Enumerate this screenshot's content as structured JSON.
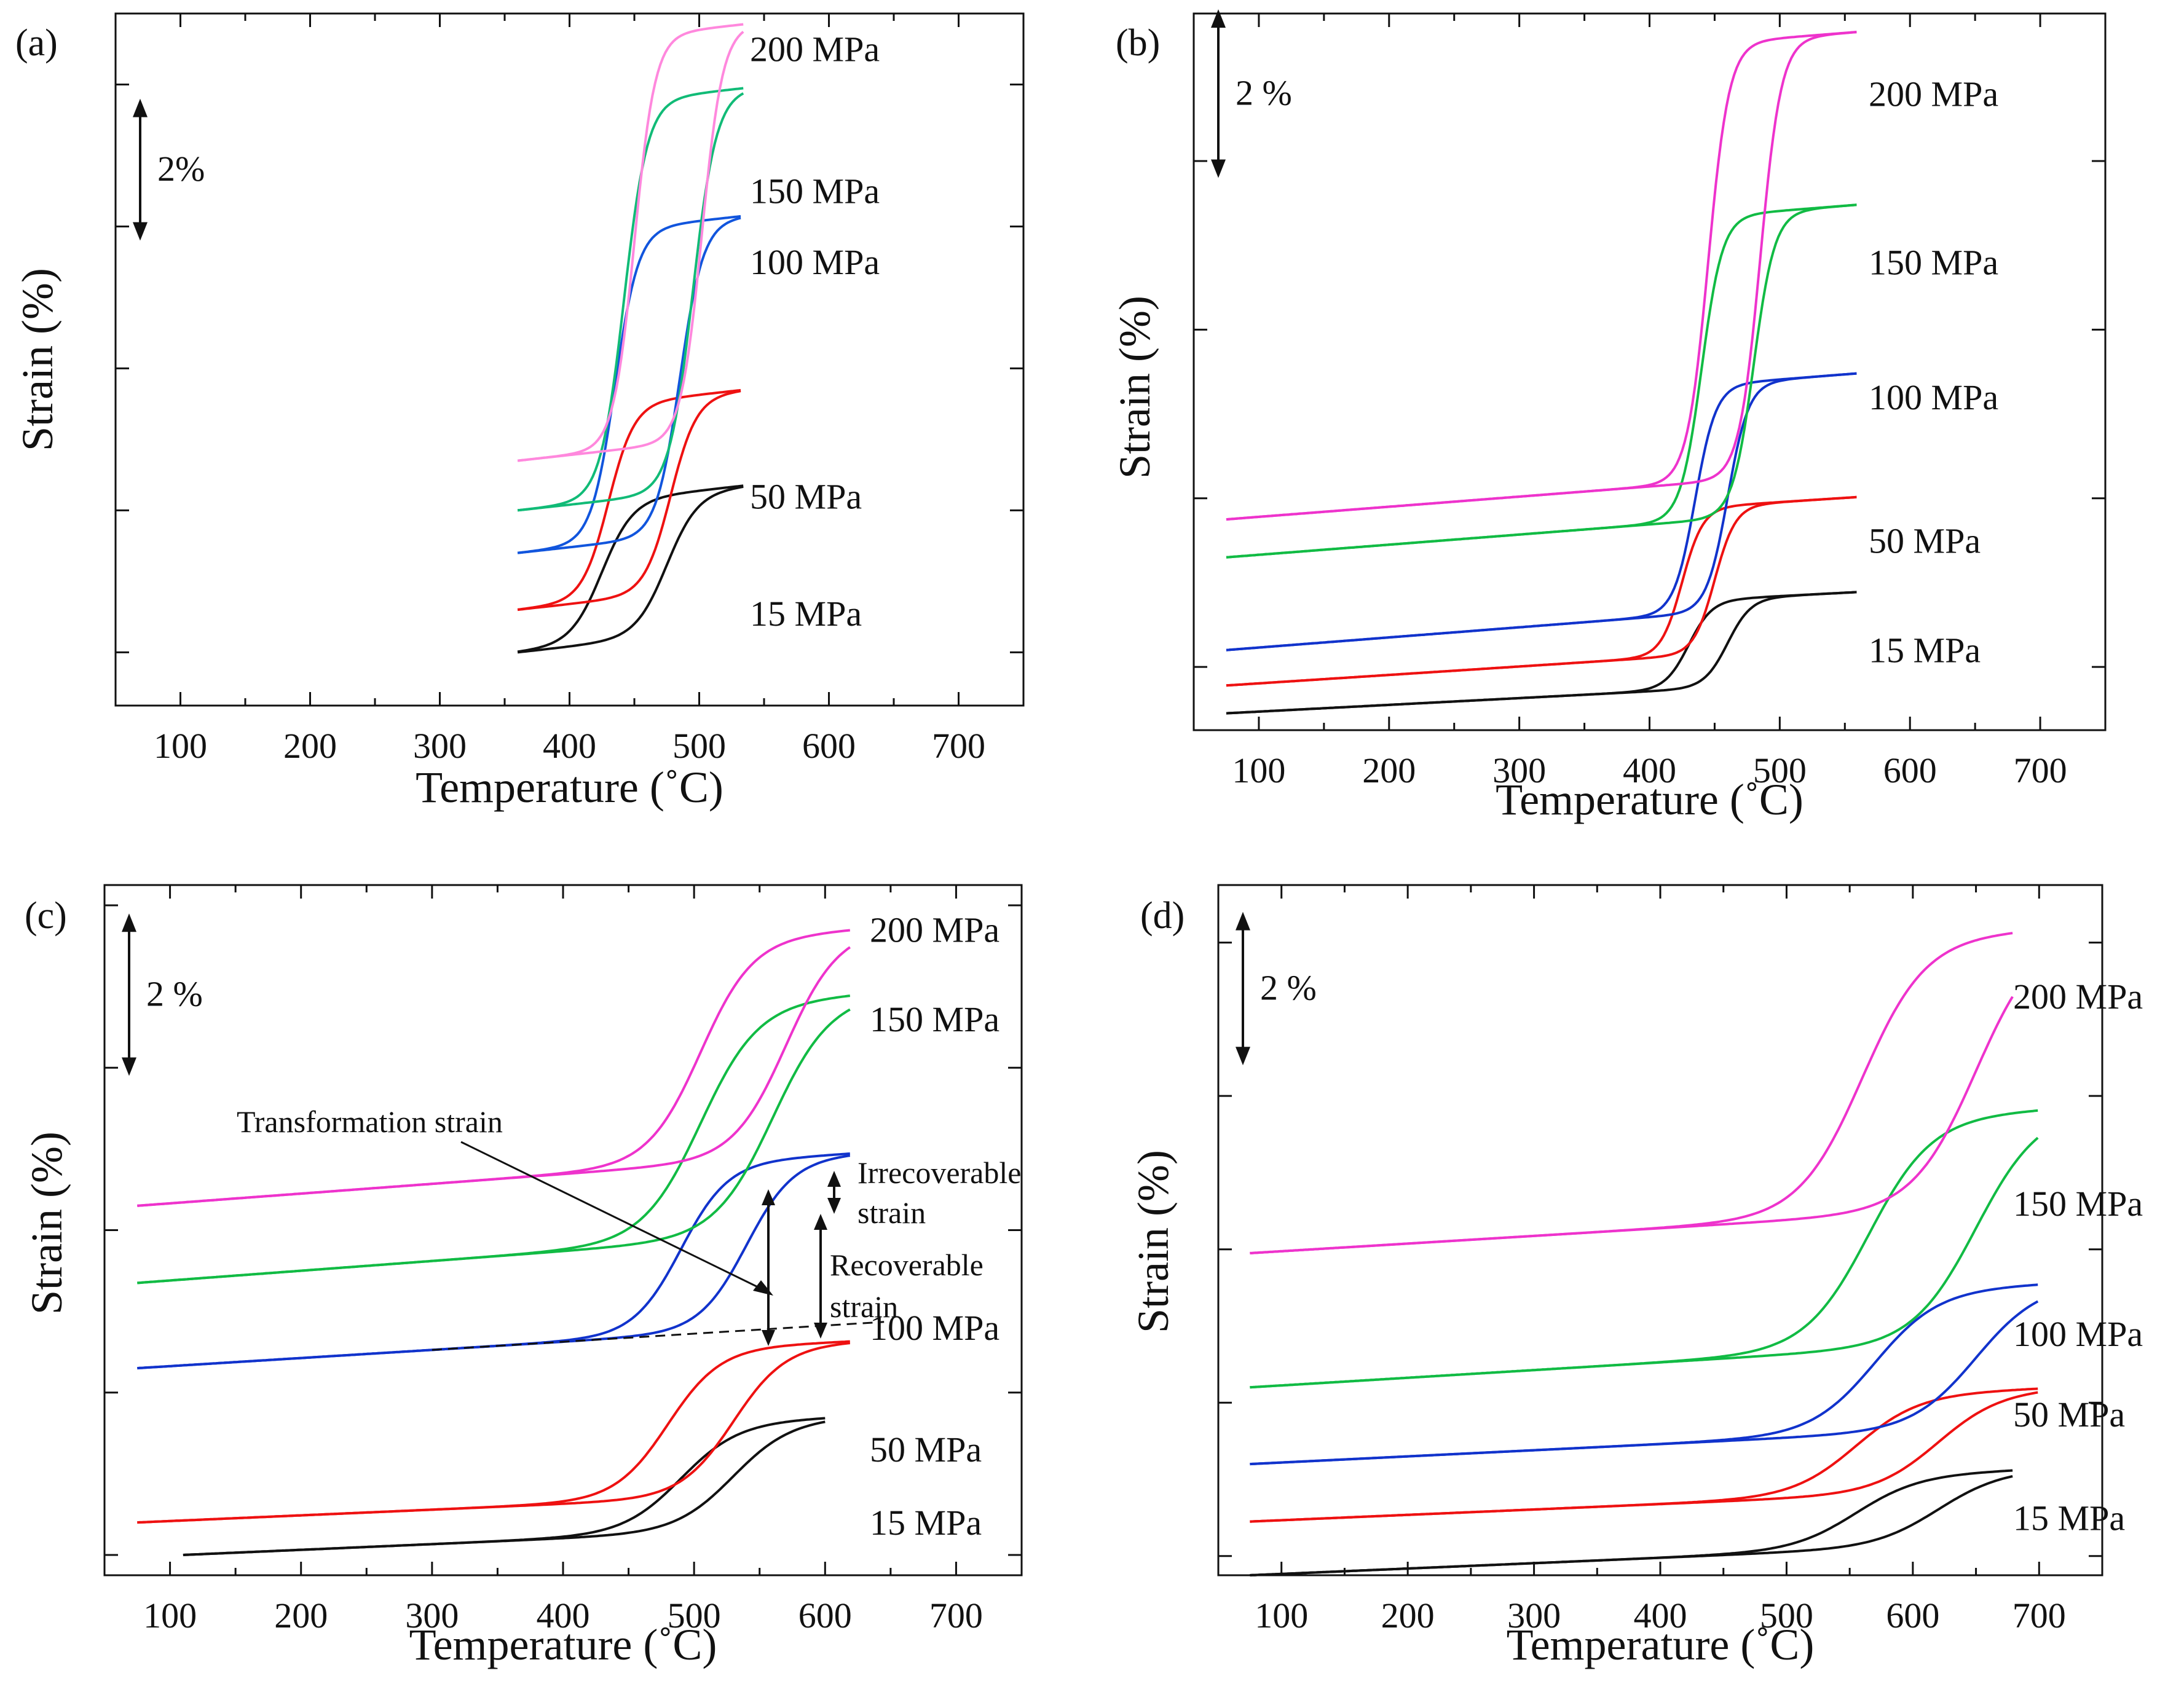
{
  "figure": {
    "axis_text_color": "#111111",
    "series_colors": {
      "200 MPa": "#ee33cc",
      "150 MPa": "#11bb44",
      "100 MPa": "#1133cc",
      "50 MPa": "#ee1111",
      "15 MPa": "#111111"
    },
    "light_colors_a": {
      "200 MPa": "#ff88dd",
      "150 MPa": "#11bb77",
      "100 MPa": "#1155dd"
    }
  },
  "chart_data": [
    {
      "panel": "(a)",
      "type": "line",
      "xlabel": "Temperature (˚C)",
      "ylabel": "Strain (%)",
      "xlim": [
        50,
        750
      ],
      "ylim": [
        -0.75,
        9
      ],
      "xticks": [
        "100",
        "200",
        "300",
        "400",
        "500",
        "600",
        "700"
      ],
      "scale_bar": {
        "label": "2%",
        "from": 5.8,
        "to": 7.8
      },
      "series": [
        {
          "name": "15 MPa",
          "label": "15 MPa",
          "label_y": 0.55,
          "base": 0.0,
          "slope": 0.2,
          "height": 2.0,
          "t_heat": 475,
          "t_cool": 425,
          "width": 12,
          "x_start": 360,
          "x_end": 535
        },
        {
          "name": "50 MPa",
          "label": "50 MPa",
          "label_y": 2.2,
          "base": 0.6,
          "slope": 0.2,
          "height": 2.75,
          "t_heat": 478,
          "t_cool": 430,
          "width": 10,
          "x_start": 360,
          "x_end": 532
        },
        {
          "name": "100 MPa",
          "label": "100 MPa",
          "label_y": 5.5,
          "base": 1.4,
          "slope": 0.2,
          "height": 4.4,
          "t_heat": 485,
          "t_cool": 435,
          "width": 9,
          "x_start": 360,
          "x_end": 532
        },
        {
          "name": "150 MPa",
          "label": "150 MPa",
          "label_y": 6.5,
          "base": 2.0,
          "slope": 0.2,
          "height": 5.6,
          "t_heat": 495,
          "t_cool": 442,
          "width": 9,
          "x_start": 360,
          "x_end": 535
        },
        {
          "name": "200 MPa",
          "label": "200 MPa",
          "label_y": 8.5,
          "base": 2.7,
          "slope": 0.2,
          "height": 5.8,
          "t_heat": 502,
          "t_cool": 450,
          "width": 8,
          "x_start": 360,
          "x_end": 535
        }
      ]
    },
    {
      "panel": "(b)",
      "type": "line",
      "xlabel": "Temperature (˚C)",
      "ylabel": "Strain (%)",
      "xlim": [
        50,
        750
      ],
      "ylim": [
        -0.75,
        7.75
      ],
      "xticks": [
        "100",
        "200",
        "300",
        "400",
        "500",
        "600",
        "700"
      ],
      "scale_bar": {
        "label": "2 %",
        "from": 5.8,
        "to": 7.8
      },
      "series": [
        {
          "name": "15 MPa",
          "label": "15 MPa",
          "label_y": 0.2,
          "base": -0.55,
          "slope": 0.08,
          "height": 1.05,
          "t_heat": 460,
          "t_cool": 430,
          "width": 9,
          "x_start": 75,
          "x_end": 560
        },
        {
          "name": "50 MPa",
          "label": "50 MPa",
          "label_y": 1.5,
          "base": -0.22,
          "slope": 0.1,
          "height": 1.75,
          "t_heat": 450,
          "t_cool": 425,
          "width": 8,
          "x_start": 75,
          "x_end": 560
        },
        {
          "name": "100 MPa",
          "label": "100 MPa",
          "label_y": 3.2,
          "base": 0.2,
          "slope": 0.12,
          "height": 2.7,
          "t_heat": 460,
          "t_cool": 435,
          "width": 8,
          "x_start": 75,
          "x_end": 560
        },
        {
          "name": "150 MPa",
          "label": "150 MPa",
          "label_y": 4.8,
          "base": 1.3,
          "slope": 0.12,
          "height": 3.6,
          "t_heat": 480,
          "t_cool": 440,
          "width": 8,
          "x_start": 75,
          "x_end": 560
        },
        {
          "name": "200 MPa",
          "label": "200 MPa",
          "label_y": 6.8,
          "base": 1.75,
          "slope": 0.12,
          "height": 5.2,
          "t_heat": 485,
          "t_cool": 445,
          "width": 8,
          "x_start": 75,
          "x_end": 560
        }
      ]
    },
    {
      "panel": "(c)",
      "type": "line",
      "xlabel": "Temperature (˚C)",
      "ylabel": "Strain (%)",
      "xlim": [
        50,
        750
      ],
      "ylim": [
        -0.25,
        8.25
      ],
      "xticks": [
        "100",
        "200",
        "300",
        "400",
        "500",
        "600",
        "700"
      ],
      "scale_bar": {
        "label": "2 %",
        "from": 5.9,
        "to": 7.9
      },
      "series": [
        {
          "name": "15 MPa",
          "label": "15 MPa",
          "label_y": 0.4,
          "base": 0.0,
          "slope": 0.07,
          "height": 1.35,
          "t_heat": 530,
          "t_cool": 490,
          "width": 22,
          "x_start": 110,
          "x_end": 600
        },
        {
          "name": "50 MPa",
          "label": "50 MPa",
          "label_y": 1.3,
          "base": 0.4,
          "slope": 0.07,
          "height": 1.85,
          "t_heat": 530,
          "t_cool": 480,
          "width": 20,
          "x_start": 75,
          "x_end": 620
        },
        {
          "name": "100 MPa",
          "label": "100 MPa",
          "label_y": 2.8,
          "base": 2.3,
          "slope": 0.1,
          "height": 2.1,
          "t_heat": 540,
          "t_cool": 490,
          "width": 18,
          "x_start": 75,
          "x_end": 620
        },
        {
          "name": "150 MPa",
          "label": "150 MPa",
          "label_y": 6.6,
          "base": 3.35,
          "slope": 0.12,
          "height": 2.9,
          "t_heat": 560,
          "t_cool": 505,
          "width": 22,
          "x_start": 75,
          "x_end": 620
        },
        {
          "name": "200 MPa",
          "label": "200 MPa",
          "label_y": 7.7,
          "base": 4.3,
          "slope": 0.12,
          "height": 2.75,
          "t_heat": 570,
          "t_cool": 505,
          "width": 20,
          "x_start": 75,
          "x_end": 620
        }
      ],
      "annotations": {
        "transformation_strain": "Transformation strain",
        "irrecoverable": [
          "Irrecoverable",
          "strain"
        ],
        "recoverable": [
          "Recoverable",
          "strain"
        ]
      }
    },
    {
      "panel": "(d)",
      "type": "line",
      "xlabel": "Temperature (˚C)",
      "ylabel": "Strain (%)",
      "xlim": [
        50,
        750
      ],
      "ylim": [
        -1.25,
        7.75
      ],
      "xticks": [
        "100",
        "200",
        "300",
        "400",
        "500",
        "600",
        "700"
      ],
      "scale_bar": {
        "label": "2 %",
        "from": 5.4,
        "to": 7.4
      },
      "series": [
        {
          "name": "15 MPa",
          "label": "15 MPa",
          "label_y": -0.5,
          "base": -1.25,
          "slope": 0.07,
          "height": 0.95,
          "t_heat": 620,
          "t_cool": 555,
          "width": 25,
          "x_start": 75,
          "x_end": 680
        },
        {
          "name": "50 MPa",
          "label": "50 MPa",
          "label_y": 0.85,
          "base": -0.55,
          "slope": 0.07,
          "height": 1.3,
          "t_heat": 620,
          "t_cool": 555,
          "width": 25,
          "x_start": 75,
          "x_end": 700
        },
        {
          "name": "100 MPa",
          "label": "100 MPa",
          "label_y": 1.9,
          "base": 0.2,
          "slope": 0.08,
          "height": 1.85,
          "t_heat": 650,
          "t_cool": 570,
          "width": 25,
          "x_start": 75,
          "x_end": 700
        },
        {
          "name": "150 MPa",
          "label": "150 MPa",
          "label_y": 3.6,
          "base": 1.2,
          "slope": 0.1,
          "height": 3.0,
          "t_heat": 650,
          "t_cool": 565,
          "width": 25,
          "x_start": 75,
          "x_end": 700
        },
        {
          "name": "200 MPa",
          "label": "200 MPa",
          "label_y": 6.3,
          "base": 2.95,
          "slope": 0.1,
          "height": 3.6,
          "t_heat": 650,
          "t_cool": 560,
          "width": 25,
          "x_start": 75,
          "x_end": 680
        }
      ]
    }
  ]
}
